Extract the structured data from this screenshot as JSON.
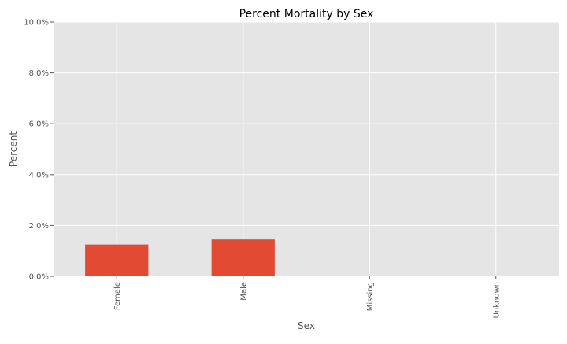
{
  "chart_data": {
    "type": "bar",
    "title": "Percent Mortality by Sex",
    "xlabel": "Sex",
    "ylabel": "Percent",
    "categories": [
      "Female",
      "Male",
      "Missing",
      "Unknown"
    ],
    "values": [
      1.25,
      1.45,
      0.0,
      0.0
    ],
    "ylim": [
      0,
      10
    ],
    "yticks": [
      0,
      2,
      4,
      6,
      8,
      10
    ],
    "ytick_labels": [
      "0.0%",
      "2.0%",
      "4.0%",
      "6.0%",
      "8.0%",
      "10.0%"
    ],
    "grid": true,
    "legend": "none",
    "style": "ggplot"
  },
  "colors": {
    "bar": "#E24A33",
    "plot_background": "#E5E5E5",
    "grid": "#FFFFFF",
    "text": "#555555",
    "title": "#000000"
  }
}
